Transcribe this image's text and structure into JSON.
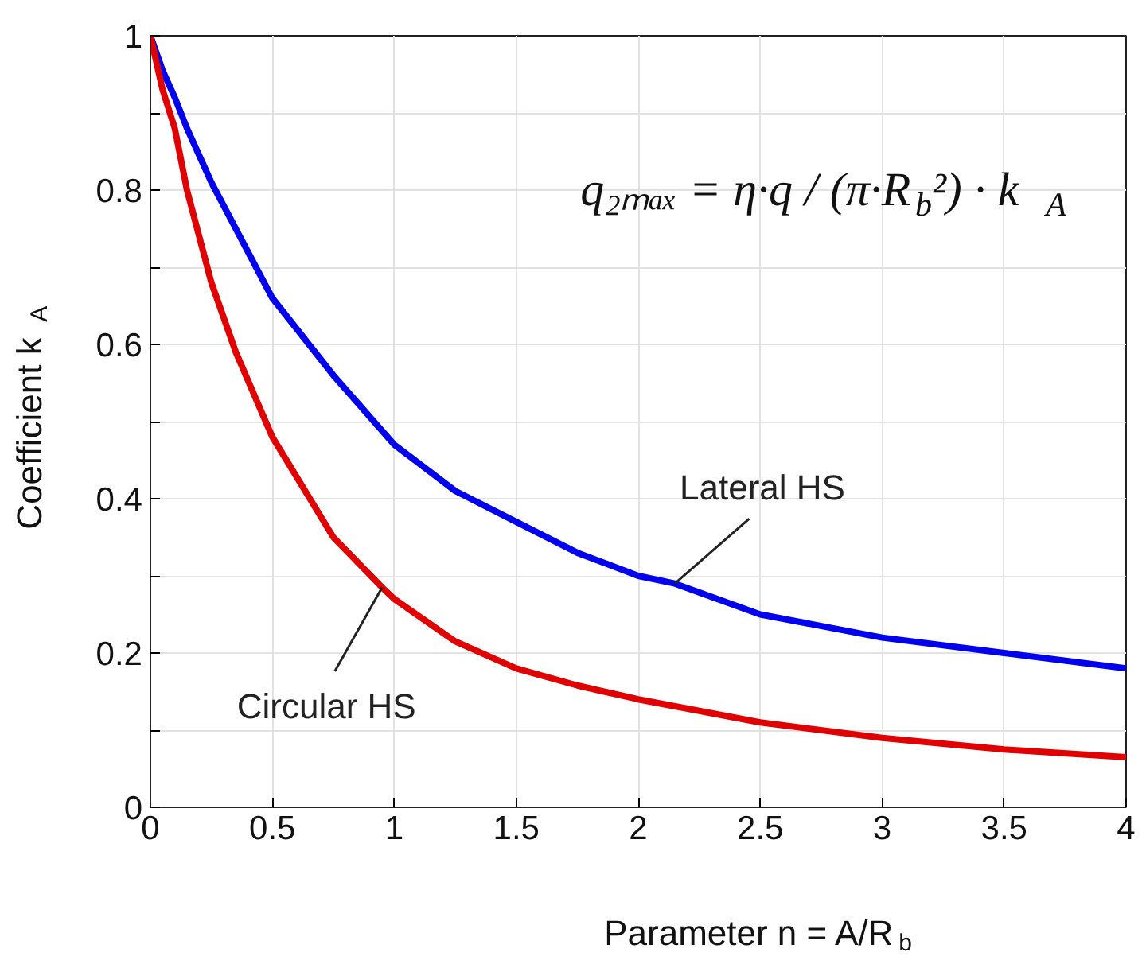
{
  "chart_data": {
    "type": "line",
    "xlabel": "Parameter n = A/R$_{b}$",
    "ylabel": "Coefficient k$_{A}$",
    "annotations": [
      "q₂ₘₐₓ = η·q / (π·R$_{b}$²) · k$_{A}$"
    ],
    "xlim": [
      0,
      4
    ],
    "ylim": [
      0,
      1
    ],
    "xticks": [
      0,
      0.5,
      1,
      1.5,
      2,
      2.5,
      3,
      3.5,
      4
    ],
    "yticks": [
      0,
      {
        "value": 0.1,
        "label": null
      },
      0.2,
      {
        "value": 0.3,
        "label": null
      },
      0.4,
      {
        "value": 0.5,
        "label": null
      },
      0.6,
      {
        "value": 0.7,
        "label": null
      },
      0.8,
      {
        "value": 0.9,
        "label": null
      },
      1
    ],
    "grid": true,
    "series": [
      {
        "name": "Lateral HS",
        "color": "#0000ee",
        "x": [
          0,
          0.05,
          0.1,
          0.15,
          0.25,
          0.35,
          0.5,
          0.75,
          1,
          1.25,
          1.5,
          1.75,
          2,
          2.15,
          2.5,
          3,
          3.5,
          4
        ],
        "values": [
          1,
          0.955,
          0.92,
          0.88,
          0.81,
          0.75,
          0.66,
          0.56,
          0.47,
          0.41,
          0.37,
          0.33,
          0.3,
          0.29,
          0.25,
          0.22,
          0.2,
          0.18
        ]
      },
      {
        "name": "Circular HS",
        "color": "#e00000",
        "x": [
          0,
          0.05,
          0.1,
          0.15,
          0.25,
          0.35,
          0.5,
          0.75,
          0.95,
          1,
          1.25,
          1.5,
          1.75,
          2,
          2.5,
          3,
          3.5,
          4
        ],
        "values": [
          1,
          0.93,
          0.88,
          0.8,
          0.68,
          0.59,
          0.48,
          0.35,
          0.285,
          0.27,
          0.215,
          0.18,
          0.158,
          0.14,
          0.11,
          0.09,
          0.075,
          0.065
        ]
      }
    ]
  }
}
